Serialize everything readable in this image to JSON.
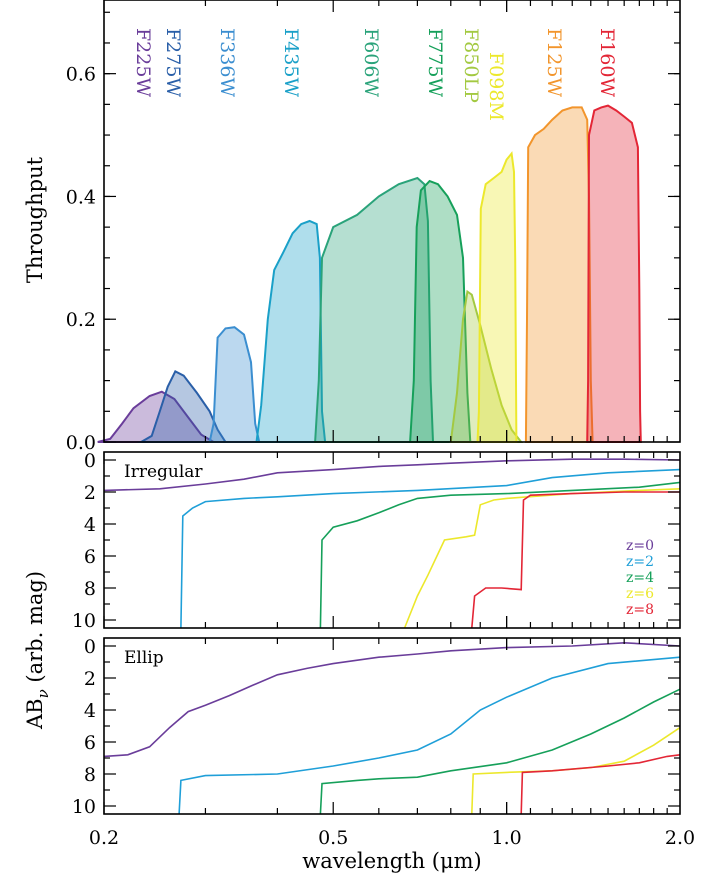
{
  "chart_data": [
    {
      "type": "area",
      "panel": "filters",
      "ylabel": "Throughput",
      "ylim": [
        0,
        0.72
      ],
      "xlim": [
        0.2,
        2.0
      ],
      "xscale": "log",
      "yticks": [
        "0.0",
        "0.2",
        "0.4",
        "0.6"
      ],
      "series": [
        {
          "name": "F225W",
          "color": "#6a3d9a",
          "points": [
            [
              0.195,
              0
            ],
            [
              0.205,
              0.005
            ],
            [
              0.215,
              0.03
            ],
            [
              0.225,
              0.055
            ],
            [
              0.24,
              0.075
            ],
            [
              0.252,
              0.082
            ],
            [
              0.265,
              0.07
            ],
            [
              0.28,
              0.04
            ],
            [
              0.295,
              0.012
            ],
            [
              0.31,
              0
            ]
          ]
        },
        {
          "name": "F275W",
          "color": "#2a5fa8",
          "points": [
            [
              0.232,
              0
            ],
            [
              0.242,
              0.01
            ],
            [
              0.25,
              0.05
            ],
            [
              0.258,
              0.09
            ],
            [
              0.266,
              0.115
            ],
            [
              0.275,
              0.108
            ],
            [
              0.29,
              0.08
            ],
            [
              0.305,
              0.05
            ],
            [
              0.315,
              0.02
            ],
            [
              0.325,
              0
            ]
          ]
        },
        {
          "name": "F336W",
          "color": "#3b8ed0",
          "points": [
            [
              0.305,
              0
            ],
            [
              0.31,
              0.03
            ],
            [
              0.315,
              0.17
            ],
            [
              0.325,
              0.185
            ],
            [
              0.337,
              0.187
            ],
            [
              0.35,
              0.175
            ],
            [
              0.36,
              0.13
            ],
            [
              0.366,
              0.03
            ],
            [
              0.372,
              0
            ]
          ]
        },
        {
          "name": "F435W",
          "color": "#1aa0c8",
          "points": [
            [
              0.368,
              0
            ],
            [
              0.375,
              0.06
            ],
            [
              0.385,
              0.2
            ],
            [
              0.395,
              0.28
            ],
            [
              0.41,
              0.31
            ],
            [
              0.425,
              0.34
            ],
            [
              0.44,
              0.355
            ],
            [
              0.455,
              0.36
            ],
            [
              0.468,
              0.355
            ],
            [
              0.474,
              0.3
            ],
            [
              0.478,
              0.05
            ],
            [
              0.484,
              0
            ]
          ]
        },
        {
          "name": "F606W",
          "color": "#2aa37a",
          "points": [
            [
              0.465,
              0
            ],
            [
              0.472,
              0.1
            ],
            [
              0.478,
              0.3
            ],
            [
              0.5,
              0.35
            ],
            [
              0.55,
              0.37
            ],
            [
              0.6,
              0.4
            ],
            [
              0.65,
              0.42
            ],
            [
              0.7,
              0.43
            ],
            [
              0.72,
              0.42
            ],
            [
              0.73,
              0.36
            ],
            [
              0.738,
              0.1
            ],
            [
              0.745,
              0
            ]
          ]
        },
        {
          "name": "F775W",
          "color": "#16a05a",
          "points": [
            [
              0.68,
              0
            ],
            [
              0.69,
              0.1
            ],
            [
              0.698,
              0.35
            ],
            [
              0.71,
              0.41
            ],
            [
              0.735,
              0.425
            ],
            [
              0.76,
              0.42
            ],
            [
              0.79,
              0.4
            ],
            [
              0.82,
              0.37
            ],
            [
              0.84,
              0.3
            ],
            [
              0.855,
              0.08
            ],
            [
              0.865,
              0
            ]
          ]
        },
        {
          "name": "F850LP",
          "color": "#a3c941",
          "points": [
            [
              0.8,
              0
            ],
            [
              0.82,
              0.08
            ],
            [
              0.84,
              0.2
            ],
            [
              0.855,
              0.245
            ],
            [
              0.87,
              0.24
            ],
            [
              0.9,
              0.19
            ],
            [
              0.94,
              0.12
            ],
            [
              0.98,
              0.06
            ],
            [
              1.02,
              0.02
            ],
            [
              1.06,
              0
            ]
          ]
        },
        {
          "name": "F098M",
          "color": "#ece82c",
          "points": [
            [
              0.89,
              0
            ],
            [
              0.895,
              0.05
            ],
            [
              0.902,
              0.38
            ],
            [
              0.92,
              0.42
            ],
            [
              0.95,
              0.43
            ],
            [
              0.98,
              0.44
            ],
            [
              1.0,
              0.46
            ],
            [
              1.02,
              0.47
            ],
            [
              1.03,
              0.44
            ],
            [
              1.035,
              0.3
            ],
            [
              1.04,
              0
            ]
          ]
        },
        {
          "name": "F125W",
          "color": "#f2952c",
          "points": [
            [
              1.08,
              0
            ],
            [
              1.085,
              0.2
            ],
            [
              1.09,
              0.48
            ],
            [
              1.12,
              0.5
            ],
            [
              1.16,
              0.51
            ],
            [
              1.2,
              0.525
            ],
            [
              1.25,
              0.54
            ],
            [
              1.3,
              0.545
            ],
            [
              1.35,
              0.545
            ],
            [
              1.38,
              0.525
            ],
            [
              1.39,
              0.4
            ],
            [
              1.4,
              0.1
            ],
            [
              1.41,
              0
            ]
          ]
        },
        {
          "name": "F160W",
          "color": "#e32636",
          "points": [
            [
              1.38,
              0
            ],
            [
              1.385,
              0.1
            ],
            [
              1.39,
              0.5
            ],
            [
              1.42,
              0.54
            ],
            [
              1.46,
              0.545
            ],
            [
              1.5,
              0.548
            ],
            [
              1.55,
              0.54
            ],
            [
              1.6,
              0.53
            ],
            [
              1.65,
              0.52
            ],
            [
              1.69,
              0.48
            ],
            [
              1.7,
              0.25
            ],
            [
              1.705,
              0.05
            ],
            [
              1.71,
              0
            ]
          ]
        }
      ]
    },
    {
      "type": "line",
      "panel": "irregular",
      "title": "Irregular",
      "ylim": [
        10.5,
        -0.5
      ],
      "xlim": [
        0.2,
        2.0
      ],
      "xscale": "log",
      "yticks": [
        "0",
        "2",
        "4",
        "6",
        "8",
        "10"
      ],
      "series": [
        {
          "name": "z=0",
          "color": "#6a3d9a",
          "points": [
            [
              0.2,
              1.9
            ],
            [
              0.25,
              1.8
            ],
            [
              0.3,
              1.5
            ],
            [
              0.35,
              1.2
            ],
            [
              0.4,
              0.8
            ],
            [
              0.5,
              0.6
            ],
            [
              0.6,
              0.4
            ],
            [
              0.7,
              0.3
            ],
            [
              0.8,
              0.2
            ],
            [
              1.0,
              0.05
            ],
            [
              1.3,
              -0.05
            ],
            [
              1.6,
              -0.05
            ],
            [
              2.0,
              0.0
            ]
          ]
        },
        {
          "name": "z=2",
          "color": "#1f9fd8",
          "points": [
            [
              0.272,
              10.5
            ],
            [
              0.274,
              3.5
            ],
            [
              0.285,
              3.0
            ],
            [
              0.3,
              2.6
            ],
            [
              0.35,
              2.4
            ],
            [
              0.4,
              2.3
            ],
            [
              0.5,
              2.1
            ],
            [
              0.7,
              1.9
            ],
            [
              1.0,
              1.6
            ],
            [
              1.2,
              1.1
            ],
            [
              1.5,
              0.8
            ],
            [
              2.0,
              0.6
            ]
          ]
        },
        {
          "name": "z=4",
          "color": "#16a05a",
          "points": [
            [
              0.475,
              10.5
            ],
            [
              0.478,
              5.0
            ],
            [
              0.5,
              4.2
            ],
            [
              0.55,
              3.8
            ],
            [
              0.6,
              3.3
            ],
            [
              0.65,
              2.8
            ],
            [
              0.7,
              2.4
            ],
            [
              0.8,
              2.2
            ],
            [
              1.0,
              2.1
            ],
            [
              1.3,
              1.9
            ],
            [
              1.7,
              1.7
            ],
            [
              2.0,
              1.4
            ]
          ]
        },
        {
          "name": "z=6",
          "color": "#ece82c",
          "points": [
            [
              0.665,
              10.5
            ],
            [
              0.7,
              8.5
            ],
            [
              0.73,
              7.2
            ],
            [
              0.78,
              5.0
            ],
            [
              0.85,
              4.8
            ],
            [
              0.88,
              4.7
            ],
            [
              0.9,
              2.8
            ],
            [
              0.95,
              2.5
            ],
            [
              1.0,
              2.4
            ],
            [
              1.3,
              2.1
            ],
            [
              1.7,
              1.9
            ],
            [
              2.0,
              1.8
            ]
          ]
        },
        {
          "name": "z=8",
          "color": "#e32636",
          "points": [
            [
              0.87,
              10.5
            ],
            [
              0.88,
              8.5
            ],
            [
              0.92,
              8.0
            ],
            [
              0.98,
              8.0
            ],
            [
              1.06,
              8.1
            ],
            [
              1.07,
              2.5
            ],
            [
              1.1,
              2.2
            ],
            [
              1.3,
              2.1
            ],
            [
              1.6,
              2.0
            ],
            [
              2.0,
              2.0
            ]
          ]
        }
      ],
      "legend": [
        "z=0",
        "z=2",
        "z=4",
        "z=6",
        "z=8"
      ],
      "legend_placement": "right"
    },
    {
      "type": "line",
      "panel": "ellip",
      "title": "Ellip",
      "ylim": [
        10.5,
        -0.5
      ],
      "xlim": [
        0.2,
        2.0
      ],
      "xscale": "log",
      "yticks": [
        "0",
        "2",
        "4",
        "6",
        "8",
        "10"
      ],
      "xticks": [
        "0.2",
        "0.5",
        "1.0",
        "2.0"
      ],
      "xticks_values": [
        0.2,
        0.5,
        1.0,
        2.0
      ],
      "xlabel": "wavelength (μm)",
      "series": [
        {
          "name": "z=0",
          "color": "#6a3d9a",
          "points": [
            [
              0.2,
              6.9
            ],
            [
              0.22,
              6.8
            ],
            [
              0.24,
              6.3
            ],
            [
              0.26,
              5.1
            ],
            [
              0.28,
              4.1
            ],
            [
              0.3,
              3.7
            ],
            [
              0.33,
              3.1
            ],
            [
              0.36,
              2.5
            ],
            [
              0.4,
              1.8
            ],
            [
              0.45,
              1.4
            ],
            [
              0.5,
              1.1
            ],
            [
              0.6,
              0.7
            ],
            [
              0.7,
              0.5
            ],
            [
              0.8,
              0.3
            ],
            [
              1.0,
              0.1
            ],
            [
              1.3,
              0.0
            ],
            [
              1.6,
              -0.2
            ],
            [
              2.0,
              0.0
            ]
          ]
        },
        {
          "name": "z=2",
          "color": "#1f9fd8",
          "points": [
            [
              0.27,
              10.5
            ],
            [
              0.272,
              8.4
            ],
            [
              0.3,
              8.1
            ],
            [
              0.4,
              8.0
            ],
            [
              0.5,
              7.5
            ],
            [
              0.6,
              7.0
            ],
            [
              0.7,
              6.5
            ],
            [
              0.8,
              5.5
            ],
            [
              0.9,
              4.0
            ],
            [
              1.0,
              3.2
            ],
            [
              1.2,
              2.0
            ],
            [
              1.5,
              1.1
            ],
            [
              2.0,
              0.7
            ]
          ]
        },
        {
          "name": "z=4",
          "color": "#16a05a",
          "points": [
            [
              0.475,
              10.5
            ],
            [
              0.478,
              8.6
            ],
            [
              0.55,
              8.4
            ],
            [
              0.6,
              8.3
            ],
            [
              0.7,
              8.2
            ],
            [
              0.8,
              7.8
            ],
            [
              1.0,
              7.3
            ],
            [
              1.2,
              6.5
            ],
            [
              1.4,
              5.5
            ],
            [
              1.6,
              4.5
            ],
            [
              1.8,
              3.5
            ],
            [
              2.0,
              2.7
            ]
          ]
        },
        {
          "name": "z=6",
          "color": "#ece82c",
          "points": [
            [
              0.87,
              10.5
            ],
            [
              0.875,
              8.0
            ],
            [
              1.0,
              7.9
            ],
            [
              1.2,
              7.8
            ],
            [
              1.4,
              7.6
            ],
            [
              1.6,
              7.2
            ],
            [
              1.8,
              6.2
            ],
            [
              2.0,
              5.1
            ]
          ]
        },
        {
          "name": "z=8",
          "color": "#e32636",
          "points": [
            [
              1.06,
              10.5
            ],
            [
              1.065,
              7.9
            ],
            [
              1.2,
              7.8
            ],
            [
              1.5,
              7.5
            ],
            [
              1.7,
              7.3
            ],
            [
              1.9,
              6.9
            ],
            [
              2.0,
              6.8
            ]
          ]
        }
      ]
    }
  ],
  "shared_ylabel": "ABν (arb. mag)",
  "shared_ylabel_main": "AB",
  "shared_ylabel_sub": "ν",
  "shared_ylabel_rest": " (arb. mag)"
}
